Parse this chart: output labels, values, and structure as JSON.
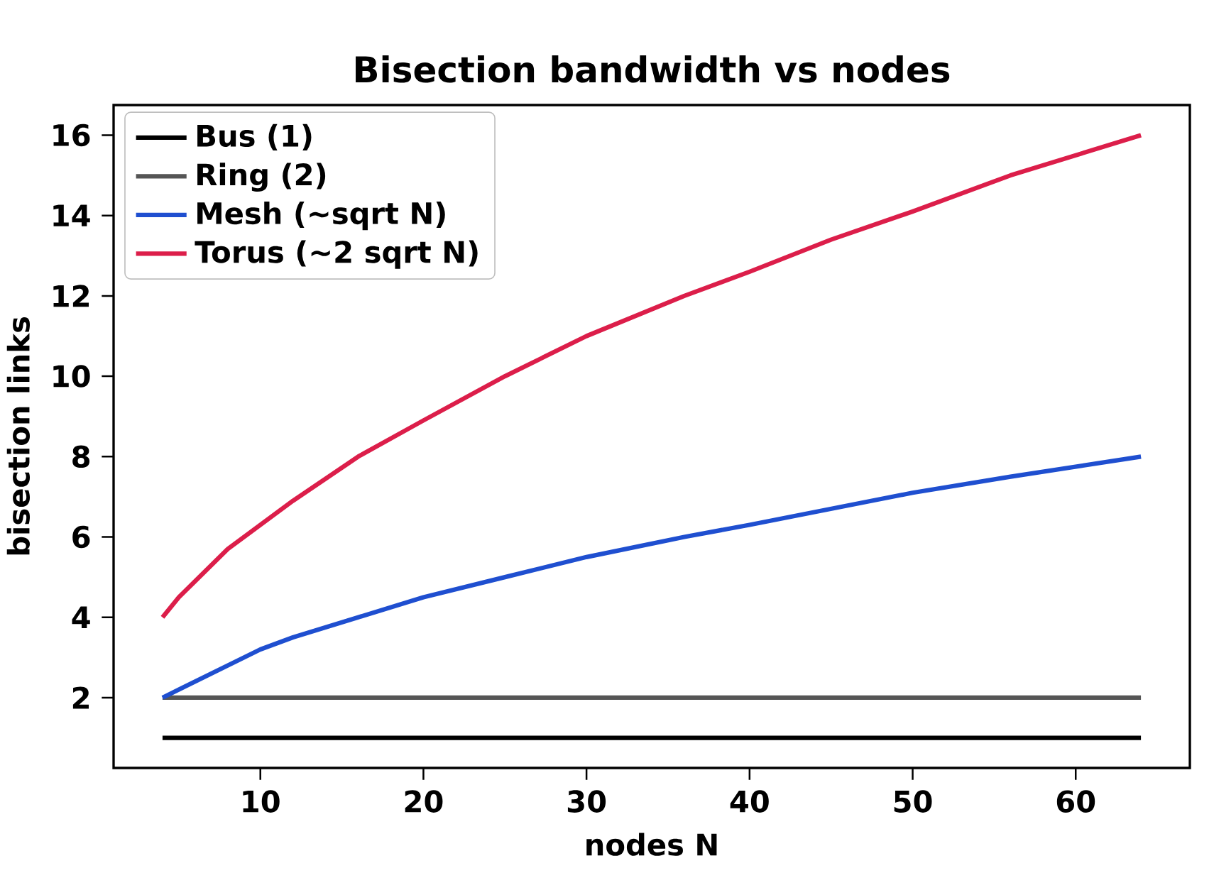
{
  "chart_data": {
    "type": "line",
    "title": "Bisection bandwidth vs nodes",
    "xlabel": "nodes N",
    "ylabel": "bisection links",
    "x": [
      4,
      5,
      6,
      8,
      10,
      12,
      16,
      20,
      25,
      30,
      36,
      40,
      45,
      50,
      56,
      64
    ],
    "series": [
      {
        "name": "Bus (1)",
        "color": "#000000",
        "values": [
          1,
          1,
          1,
          1,
          1,
          1,
          1,
          1,
          1,
          1,
          1,
          1,
          1,
          1,
          1,
          1
        ]
      },
      {
        "name": "Ring (2)",
        "color": "#555555",
        "values": [
          2,
          2,
          2,
          2,
          2,
          2,
          2,
          2,
          2,
          2,
          2,
          2,
          2,
          2,
          2,
          2
        ]
      },
      {
        "name": "Mesh (~sqrt N)",
        "color": "#1f4fd0",
        "values": [
          2.0,
          2.2,
          2.4,
          2.8,
          3.2,
          3.5,
          4.0,
          4.5,
          5.0,
          5.5,
          6.0,
          6.3,
          6.7,
          7.1,
          7.5,
          8.0
        ]
      },
      {
        "name": "Torus (~2 sqrt N)",
        "color": "#dc1e4a",
        "values": [
          4.0,
          4.5,
          4.9,
          5.7,
          6.3,
          6.9,
          8.0,
          8.9,
          10.0,
          11.0,
          12.0,
          12.6,
          13.4,
          14.1,
          15.0,
          16.0
        ]
      }
    ],
    "xlim": [
      1,
      67
    ],
    "ylim": [
      0.25,
      16.75
    ],
    "xticks": [
      10,
      20,
      30,
      40,
      50,
      60
    ],
    "yticks": [
      2,
      4,
      6,
      8,
      10,
      12,
      14,
      16
    ],
    "legend": "top left",
    "grid": false,
    "line_style": "solid",
    "marker": "none"
  }
}
